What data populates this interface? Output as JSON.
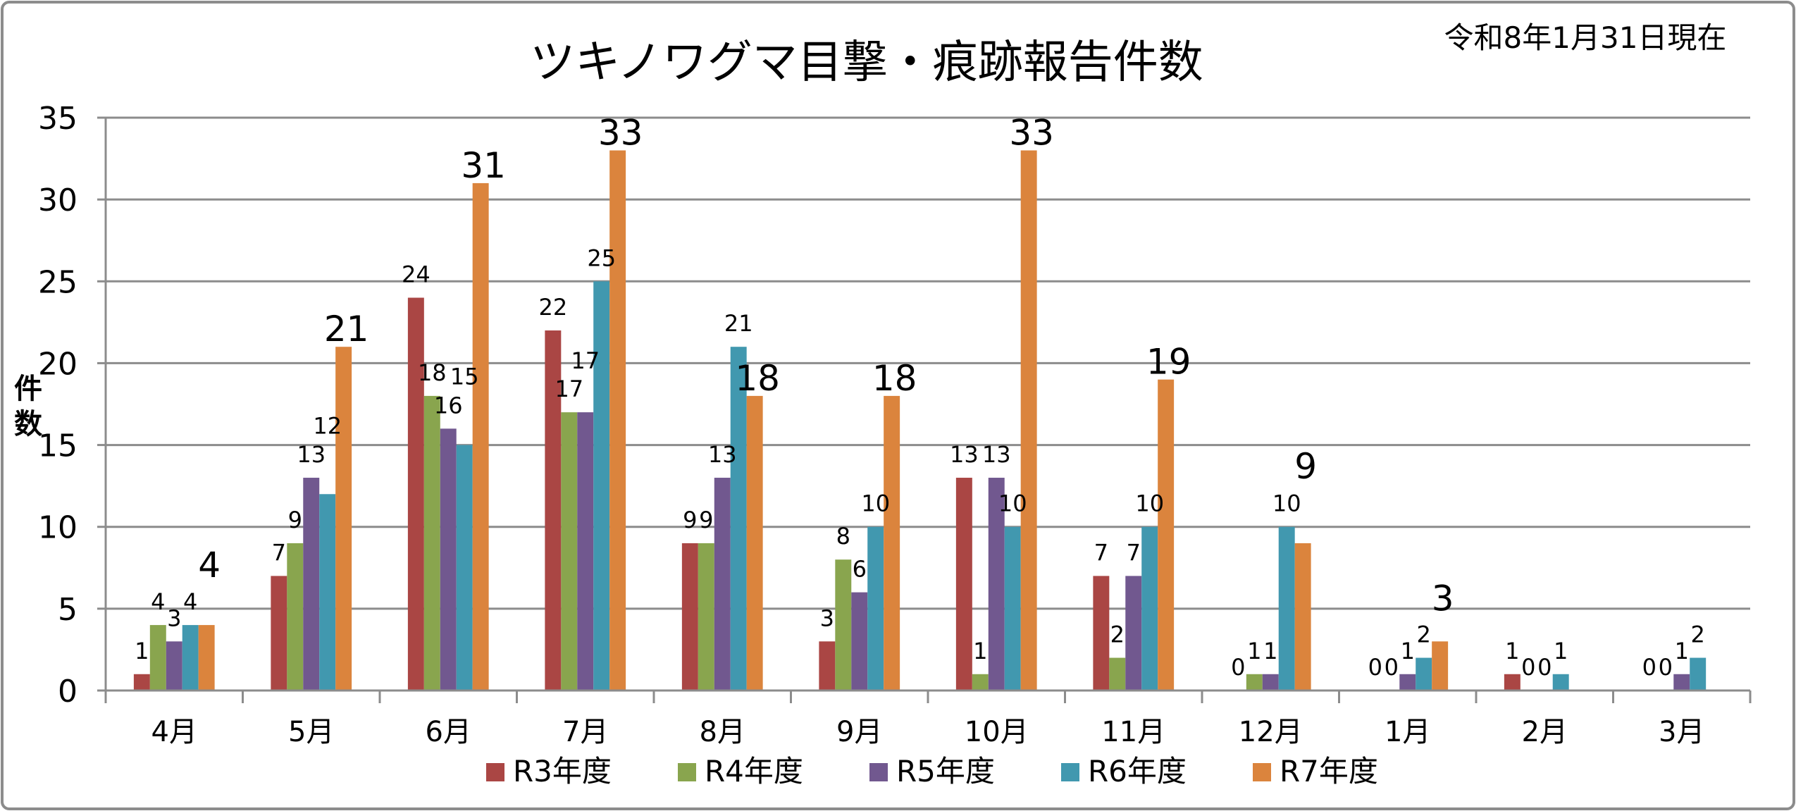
{
  "chart_data": {
    "type": "bar",
    "title": "ツキノワグマ目撃・痕跡報告件数",
    "subtitle": "令和8年1月31日現在",
    "xlabel": "",
    "ylabel": "件数",
    "ylim": [
      0,
      35
    ],
    "yticks": [
      0,
      5,
      10,
      15,
      20,
      25,
      30,
      35
    ],
    "grid": true,
    "legend_position": "bottom",
    "categories": [
      "4月",
      "5月",
      "6月",
      "7月",
      "8月",
      "9月",
      "10月",
      "11月",
      "12月",
      "1月",
      "2月",
      "3月"
    ],
    "series": [
      {
        "name": "R3年度",
        "color": "#AA4644",
        "values": [
          1,
          7,
          24,
          22,
          9,
          3,
          13,
          7,
          0,
          0,
          1,
          0
        ]
      },
      {
        "name": "R4年度",
        "color": "#89A54E",
        "values": [
          4,
          9,
          18,
          17,
          9,
          8,
          1,
          2,
          1,
          0,
          0,
          0
        ]
      },
      {
        "name": "R5年度",
        "color": "#71588F",
        "values": [
          3,
          13,
          16,
          17,
          13,
          6,
          13,
          7,
          1,
          1,
          0,
          1
        ]
      },
      {
        "name": "R6年度",
        "color": "#4198AF",
        "values": [
          4,
          12,
          15,
          25,
          21,
          10,
          10,
          10,
          10,
          2,
          1,
          2
        ]
      },
      {
        "name": "R7年度",
        "color": "#DB843D",
        "values": [
          4,
          21,
          31,
          33,
          18,
          18,
          33,
          19,
          9,
          3,
          null,
          null
        ]
      }
    ]
  }
}
